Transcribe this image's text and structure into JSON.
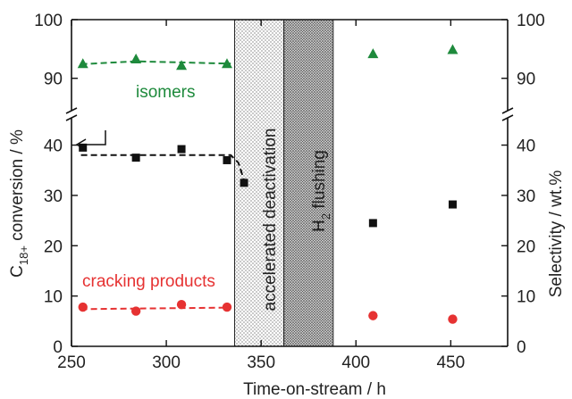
{
  "chart_data": {
    "type": "scatter",
    "xlabel": "Time-on-stream /  h",
    "ylabel_left": "C18+ conversion /  %",
    "ylabel_right": "Selectivity /  wt.%",
    "xlim": [
      250,
      480
    ],
    "x_ticks": [
      "250",
      "300",
      "350",
      "400",
      "450"
    ],
    "y_ticks_lower": [
      "0",
      "10",
      "20",
      "30",
      "40"
    ],
    "y_ticks_upper": [
      "90",
      "100"
    ],
    "y_lower_range": [
      0,
      44
    ],
    "y_upper_range": [
      86,
      100
    ],
    "axis_break": true,
    "series": [
      {
        "role": "conversion",
        "marker": "square",
        "color": "#111111",
        "x": [
          256,
          284,
          308,
          332,
          341,
          409,
          451
        ],
        "y": [
          39.5,
          37.5,
          39.2,
          37,
          32.5,
          24.5,
          28.2
        ]
      },
      {
        "name": "isomers",
        "marker": "triangle",
        "color": "#1e8a3c",
        "x": [
          256,
          284,
          308,
          332,
          409,
          451
        ],
        "y": [
          92.5,
          93.3,
          92.2,
          92.5,
          94.2,
          94.9
        ]
      },
      {
        "name": "cracking products",
        "marker": "circle",
        "color": "#e63232",
        "x": [
          256,
          284,
          308,
          332,
          409,
          451
        ],
        "y": [
          7.8,
          7,
          8.3,
          7.8,
          6.1,
          5.4
        ]
      }
    ],
    "trend_lines": [
      {
        "color": "#111111",
        "x": [
          255,
          334,
          338,
          341
        ],
        "y": [
          38,
          38,
          36.5,
          33
        ]
      },
      {
        "color": "#1e8a3c",
        "x": [
          255,
          284,
          334
        ],
        "y": [
          92.4,
          92.9,
          92.5
        ]
      },
      {
        "color": "#e63232",
        "x": [
          255,
          334
        ],
        "y": [
          7.4,
          7.7
        ]
      }
    ],
    "shaded_regions": [
      {
        "label": "accelerated deactivation",
        "x_range": [
          336,
          362
        ],
        "pattern": "sparse-dots"
      },
      {
        "label_main": "H",
        "label_sub": "2",
        "label_rest": " flushing",
        "x_range": [
          362,
          388
        ],
        "pattern": "dense-dots"
      }
    ],
    "annotations": [
      "isomers",
      "cracking products"
    ],
    "y_label_main": "C",
    "y_label_sub": "18+",
    "y_label_rest": " conversion /  %"
  }
}
